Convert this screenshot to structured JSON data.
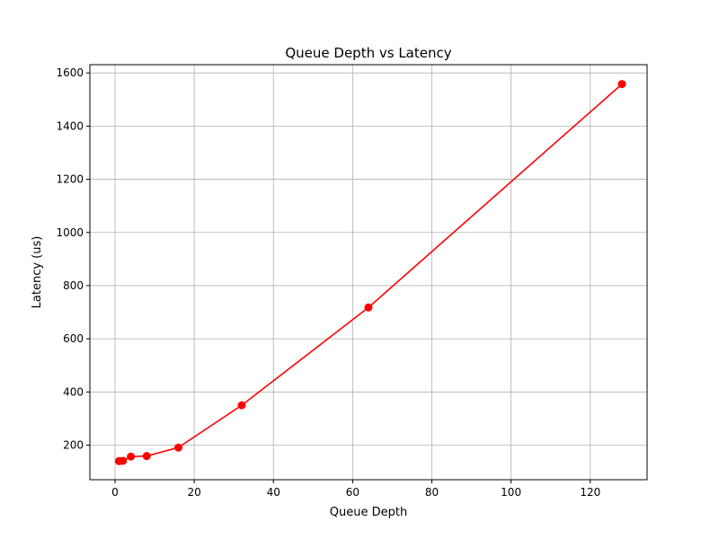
{
  "chart_data": {
    "type": "line",
    "title": "Queue Depth vs Latency",
    "xlabel": "Queue Depth",
    "ylabel": "Latency (us)",
    "xlim": [
      -6.35,
      134.35
    ],
    "ylim": [
      70,
      1631
    ],
    "x_ticks": [
      0,
      20,
      40,
      60,
      80,
      100,
      120
    ],
    "y_ticks": [
      200,
      400,
      600,
      800,
      1000,
      1200,
      1400,
      1600
    ],
    "grid": true,
    "series": [
      {
        "color": "#ff0000",
        "marker": "circle",
        "x": [
          1,
          2,
          4,
          8,
          16,
          32,
          64,
          128
        ],
        "y": [
          140,
          141,
          157,
          159,
          191,
          350,
          718,
          1558
        ]
      }
    ]
  }
}
